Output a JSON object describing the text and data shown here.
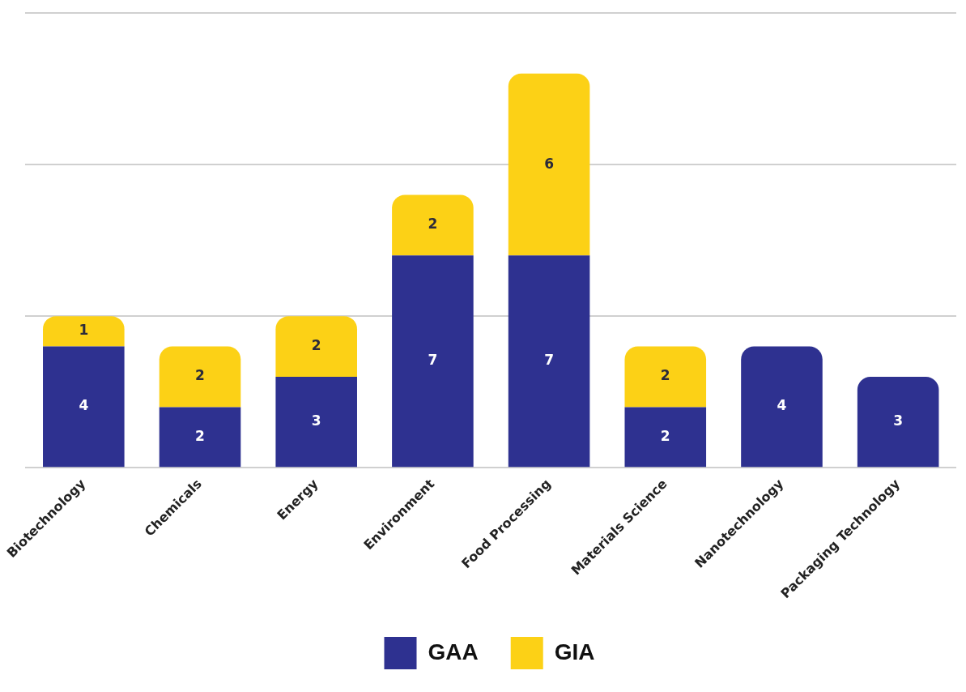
{
  "chart_data": {
    "type": "bar",
    "stacked": true,
    "categories": [
      "Biotechnology",
      "Chemicals",
      "Energy",
      "Environment",
      "Food Processing",
      "Materials Science",
      "Nanotechnology",
      "Packaging Technology"
    ],
    "series": [
      {
        "name": "GAA",
        "color": "#2e3190",
        "values": [
          4,
          2,
          3,
          7,
          7,
          2,
          4,
          3
        ]
      },
      {
        "name": "GIA",
        "color": "#fcd116",
        "values": [
          1,
          2,
          2,
          2,
          6,
          2,
          null,
          null
        ]
      }
    ],
    "ylim": [
      0,
      15
    ],
    "yticks": [
      {
        "value": 0,
        "label": null
      },
      {
        "value": 5,
        "label": null
      },
      {
        "value": 10,
        "label": null
      },
      {
        "value": 15,
        "label": null
      }
    ],
    "tick_labels": "x",
    "grid": "y",
    "legend": "bottom",
    "data_labels": true
  }
}
